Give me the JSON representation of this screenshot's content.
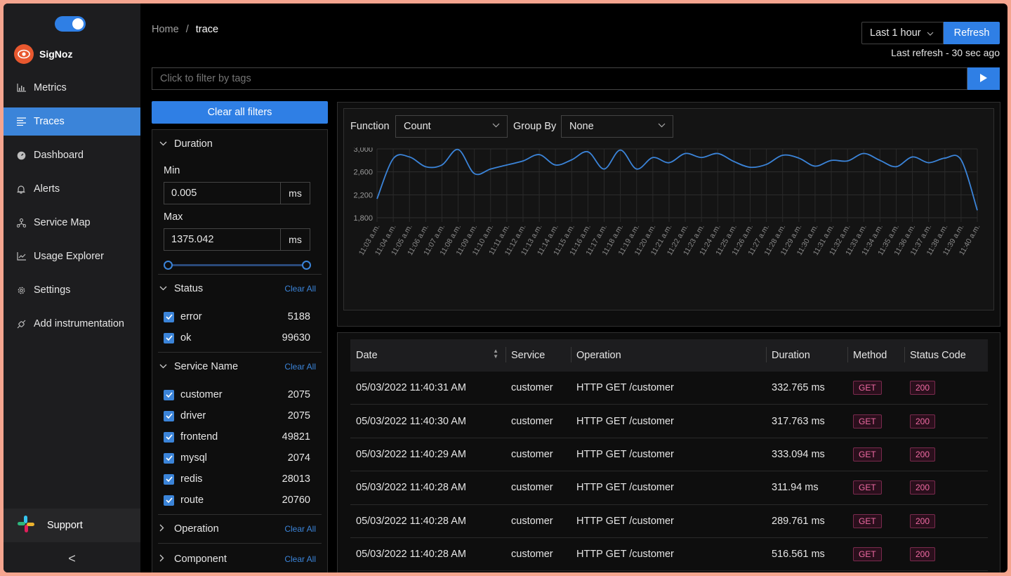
{
  "app": {
    "name": "SigNoz"
  },
  "sidebar": {
    "items": [
      {
        "label": "Metrics",
        "icon": "bar-chart-icon",
        "active": false
      },
      {
        "label": "Traces",
        "icon": "list-icon",
        "active": true
      },
      {
        "label": "Dashboard",
        "icon": "dashboard-icon",
        "active": false
      },
      {
        "label": "Alerts",
        "icon": "bell-icon",
        "active": false
      },
      {
        "label": "Service Map",
        "icon": "deployment-icon",
        "active": false
      },
      {
        "label": "Usage Explorer",
        "icon": "line-chart-icon",
        "active": false
      },
      {
        "label": "Settings",
        "icon": "gear-icon",
        "active": false
      },
      {
        "label": "Add instrumentation",
        "icon": "api-icon",
        "active": false
      }
    ],
    "support_label": "Support",
    "collapse_glyph": "<"
  },
  "header": {
    "breadcrumb": {
      "home": "Home",
      "separator": "/",
      "current": "trace"
    },
    "time_range": "Last 1 hour",
    "refresh_label": "Refresh",
    "last_refresh": "Last refresh - 30 sec ago",
    "filter_placeholder": "Click to filter by tags"
  },
  "filters": {
    "clear_all_label": "Clear all filters",
    "duration": {
      "title": "Duration",
      "min_label": "Min",
      "min_value": "0.005",
      "min_unit": "ms",
      "max_label": "Max",
      "max_value": "1375.042",
      "max_unit": "ms"
    },
    "status": {
      "title": "Status",
      "clear_label": "Clear All",
      "items": [
        {
          "label": "error",
          "count": "5188",
          "checked": true
        },
        {
          "label": "ok",
          "count": "99630",
          "checked": true
        }
      ]
    },
    "service_name": {
      "title": "Service Name",
      "clear_label": "Clear All",
      "items": [
        {
          "label": "customer",
          "count": "2075",
          "checked": true
        },
        {
          "label": "driver",
          "count": "2075",
          "checked": true
        },
        {
          "label": "frontend",
          "count": "49821",
          "checked": true
        },
        {
          "label": "mysql",
          "count": "2074",
          "checked": true
        },
        {
          "label": "redis",
          "count": "28013",
          "checked": true
        },
        {
          "label": "route",
          "count": "20760",
          "checked": true
        }
      ]
    },
    "operation": {
      "title": "Operation",
      "clear_label": "Clear All"
    },
    "component": {
      "title": "Component",
      "clear_label": "Clear All"
    }
  },
  "chart_controls": {
    "function_label": "Function",
    "function_value": "Count",
    "group_by_label": "Group By",
    "group_by_value": "None"
  },
  "chart_data": {
    "type": "line",
    "ylim": [
      1800,
      3000
    ],
    "yticks": [
      "3,000",
      "2,600",
      "2,200",
      "1,800"
    ],
    "ytick_values": [
      3000,
      2600,
      2200,
      1800
    ],
    "x": [
      "11:03 a.m.",
      "11:04 a.m.",
      "11:05 a.m.",
      "11:06 a.m.",
      "11:07 a.m.",
      "11:08 a.m.",
      "11:09 a.m.",
      "11:10 a.m.",
      "11:11 a.m.",
      "11:12 a.m.",
      "11:13 a.m.",
      "11:14 a.m.",
      "11:15 a.m.",
      "11:16 a.m.",
      "11:17 a.m.",
      "11:18 a.m.",
      "11:19 a.m.",
      "11:20 a.m.",
      "11:21 a.m.",
      "11:22 a.m.",
      "11:23 a.m.",
      "11:24 a.m.",
      "11:25 a.m.",
      "11:26 a.m.",
      "11:27 a.m.",
      "11:28 a.m.",
      "11:29 a.m.",
      "11:30 a.m.",
      "11:31 a.m.",
      "11:32 a.m.",
      "11:33 a.m.",
      "11:34 a.m.",
      "11:35 a.m.",
      "11:36 a.m.",
      "11:37 a.m.",
      "11:38 a.m.",
      "11:39 a.m.",
      "11:40 a.m."
    ],
    "values": [
      2130,
      2830,
      2860,
      2690,
      2720,
      2990,
      2570,
      2650,
      2720,
      2790,
      2900,
      2720,
      2810,
      2950,
      2650,
      2980,
      2650,
      2850,
      2760,
      2920,
      2850,
      2920,
      2780,
      2680,
      2730,
      2890,
      2840,
      2700,
      2800,
      2790,
      2920,
      2800,
      2690,
      2860,
      2760,
      2840,
      2810,
      1930
    ],
    "color": "#3b84d9",
    "grid": true
  },
  "table": {
    "columns": [
      "Date",
      "Service",
      "Operation",
      "Duration",
      "Method",
      "Status Code"
    ],
    "rows": [
      {
        "date": "05/03/2022 11:40:31 AM",
        "service": "customer",
        "operation": "HTTP GET /customer",
        "duration": "332.765 ms",
        "method": "GET",
        "status": "200"
      },
      {
        "date": "05/03/2022 11:40:30 AM",
        "service": "customer",
        "operation": "HTTP GET /customer",
        "duration": "317.763 ms",
        "method": "GET",
        "status": "200"
      },
      {
        "date": "05/03/2022 11:40:29 AM",
        "service": "customer",
        "operation": "HTTP GET /customer",
        "duration": "333.094 ms",
        "method": "GET",
        "status": "200"
      },
      {
        "date": "05/03/2022 11:40:28 AM",
        "service": "customer",
        "operation": "HTTP GET /customer",
        "duration": "311.94 ms",
        "method": "GET",
        "status": "200"
      },
      {
        "date": "05/03/2022 11:40:28 AM",
        "service": "customer",
        "operation": "HTTP GET /customer",
        "duration": "289.761 ms",
        "method": "GET",
        "status": "200"
      },
      {
        "date": "05/03/2022 11:40:28 AM",
        "service": "customer",
        "operation": "HTTP GET /customer",
        "duration": "516.561 ms",
        "method": "GET",
        "status": "200"
      }
    ]
  }
}
